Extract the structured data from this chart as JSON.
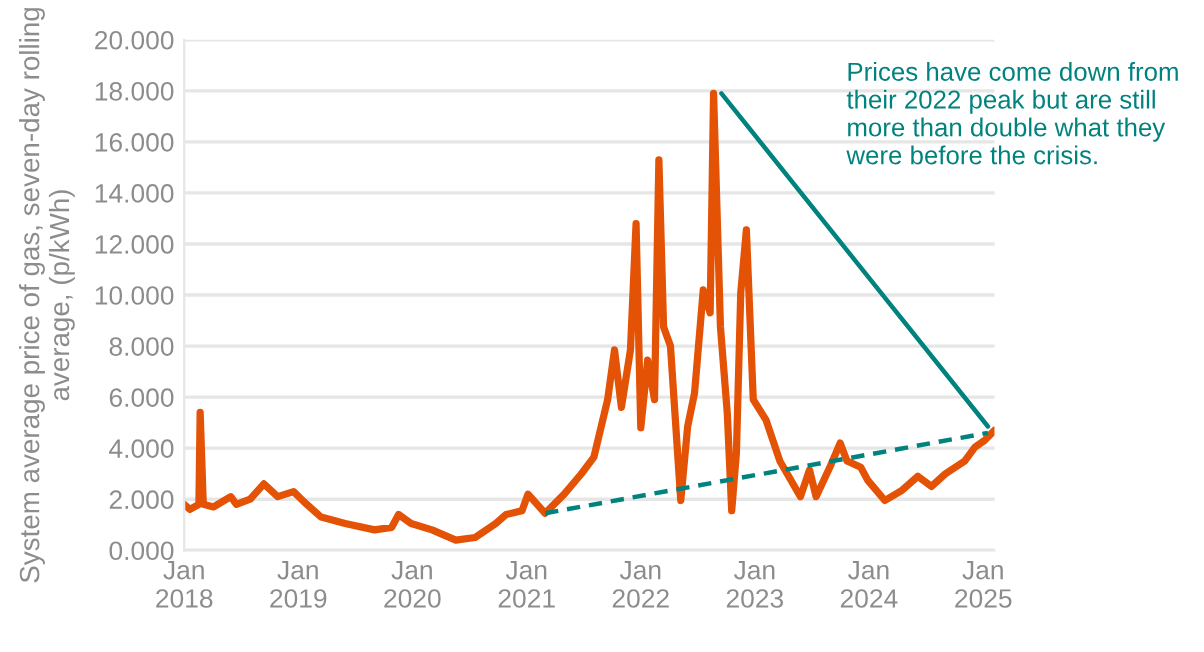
{
  "chart_data": {
    "type": "line",
    "ylabel": "System average price of gas, seven-day rolling average, (p/kWh)",
    "annotations": [
      "Prices have come down from their 2022 peak but are still more than double what they were before the crisis."
    ],
    "xlim": [
      "2018-01-01",
      "2025-02-06"
    ],
    "xticks": [
      {
        "value": "2018-01-01",
        "label": "Jan\n2018"
      },
      {
        "value": "2019-01-01",
        "label": "Jan\n2019"
      },
      {
        "value": "2020-01-01",
        "label": "Jan\n2020"
      },
      {
        "value": "2021-01-01",
        "label": "Jan\n2021"
      },
      {
        "value": "2022-01-01",
        "label": "Jan\n2022"
      },
      {
        "value": "2023-01-01",
        "label": "Jan\n2023"
      },
      {
        "value": "2024-01-01",
        "label": "Jan\n2024"
      },
      {
        "value": "2025-01-01",
        "label": "Jan\n2025"
      }
    ],
    "ylim": [
      0,
      20
    ],
    "yticks": [
      {
        "value": 0,
        "label": "0.000"
      },
      {
        "value": 2,
        "label": "2.000"
      },
      {
        "value": 4,
        "label": "4.000"
      },
      {
        "value": 6,
        "label": "6.000"
      },
      {
        "value": 8,
        "label": "8.000"
      },
      {
        "value": 10,
        "label": "10.000"
      },
      {
        "value": 12,
        "label": "12.000"
      },
      {
        "value": 14,
        "label": "14.000"
      },
      {
        "value": 16,
        "label": "16.000"
      },
      {
        "value": 18,
        "label": "18.000"
      },
      {
        "value": 20,
        "label": "20.000"
      }
    ],
    "grid": "y",
    "series": [
      {
        "color": "#e35205",
        "x": [
          "2018-01-01",
          "2018-01-19",
          "2018-02-17",
          "2018-02-21",
          "2018-03-03",
          "2018-04-05",
          "2018-05-30",
          "2018-06-17",
          "2018-07-31",
          "2018-09-13",
          "2018-10-27",
          "2018-12-17",
          "2019-01-19",
          "2019-03-15",
          "2019-05-31",
          "2019-09-02",
          "2019-10-27",
          "2019-11-18",
          "2019-12-28",
          "2020-03-04",
          "2020-05-19",
          "2020-07-20",
          "2020-09-24",
          "2020-10-27",
          "2020-12-17",
          "2021-01-05",
          "2021-03-01",
          "2021-05-01",
          "2021-06-25",
          "2021-08-04",
          "2021-09-17",
          "2021-10-09",
          "2021-10-31",
          "2021-11-29",
          "2021-12-17",
          "2022-01-01",
          "2022-01-23",
          "2022-02-14",
          "2022-02-28",
          "2022-03-15",
          "2022-04-06",
          "2022-05-09",
          "2022-05-31",
          "2022-06-22",
          "2022-07-20",
          "2022-08-11",
          "2022-08-22",
          "2022-09-13",
          "2022-10-05",
          "2022-10-19",
          "2022-11-03",
          "2022-11-17",
          "2022-12-05",
          "2022-12-27",
          "2023-02-06",
          "2023-03-22",
          "2023-05-27",
          "2023-06-25",
          "2023-07-16",
          "2023-08-29",
          "2023-10-01",
          "2023-10-23",
          "2023-12-06",
          "2023-12-28",
          "2024-02-21",
          "2024-04-16",
          "2024-06-06",
          "2024-07-19",
          "2024-09-02",
          "2024-11-03",
          "2024-12-06",
          "2025-01-05",
          "2025-02-06"
        ],
        "values": [
          1.8,
          1.6,
          1.8,
          5.4,
          1.8,
          1.7,
          2.1,
          1.8,
          2.0,
          2.6,
          2.1,
          2.3,
          1.9,
          1.3,
          1.05,
          0.8,
          0.9,
          1.4,
          1.05,
          0.8,
          0.4,
          0.5,
          1.05,
          1.4,
          1.55,
          2.2,
          1.45,
          2.2,
          3.0,
          3.65,
          5.9,
          7.85,
          5.6,
          7.85,
          12.8,
          4.8,
          7.45,
          5.9,
          15.3,
          8.75,
          8.0,
          1.95,
          4.85,
          6.15,
          10.2,
          9.3,
          17.9,
          8.75,
          5.35,
          1.55,
          3.8,
          10.1,
          12.55,
          5.9,
          5.1,
          3.5,
          2.1,
          3.15,
          2.1,
          3.25,
          4.2,
          3.5,
          3.25,
          2.75,
          1.95,
          2.35,
          2.9,
          2.5,
          3.0,
          3.5,
          4.05,
          4.3,
          4.7
        ]
      },
      {
        "color": "#00827f",
        "line_style": "solid",
        "x": [
          "2022-09-16",
          "2025-01-16"
        ],
        "values": [
          17.9,
          4.85
        ]
      },
      {
        "color": "#00827f",
        "line_style": "dashed",
        "x": [
          "2021-03-01",
          "2025-01-16"
        ],
        "values": [
          1.45,
          4.6
        ]
      }
    ]
  }
}
